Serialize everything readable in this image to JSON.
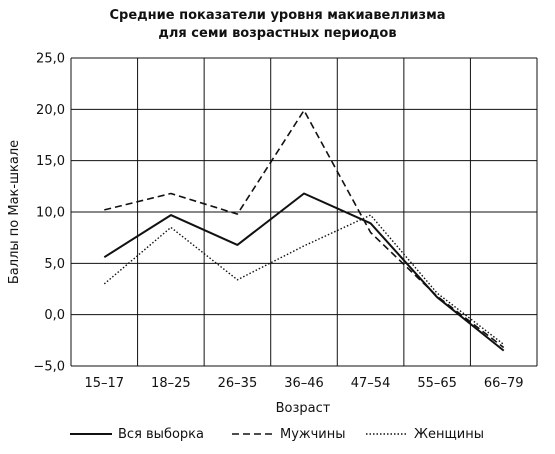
{
  "chart_data": {
    "type": "line",
    "title_lines": [
      "Средние показатели уровня макиавеллизма",
      "для семи возрастных периодов"
    ],
    "xlabel": "Возраст",
    "ylabel": "Баллы по Мак-шкале",
    "categories": [
      "15–17",
      "18–25",
      "26–35",
      "36–46",
      "47–54",
      "55–65",
      "66–79"
    ],
    "ylim": [
      -5,
      25
    ],
    "yticks": [
      "25,0",
      "20,0",
      "15,0",
      "10,0",
      "5,0",
      "0,0",
      "−5,0"
    ],
    "ytick_values": [
      25,
      20,
      15,
      10,
      5,
      0,
      -5
    ],
    "grid": true,
    "legend_position": "bottom",
    "series": [
      {
        "name": "Вся выборка",
        "style": "solid",
        "values": [
          5.6,
          9.7,
          6.8,
          11.8,
          8.9,
          1.7,
          -3.5
        ]
      },
      {
        "name": "Мужчины",
        "style": "dashed",
        "values": [
          10.2,
          11.8,
          9.8,
          19.9,
          8.0,
          1.8,
          -3.2
        ]
      },
      {
        "name": "Женщины",
        "style": "dotted",
        "values": [
          3.0,
          8.5,
          3.4,
          6.7,
          9.7,
          2.1,
          -2.9
        ]
      }
    ]
  }
}
